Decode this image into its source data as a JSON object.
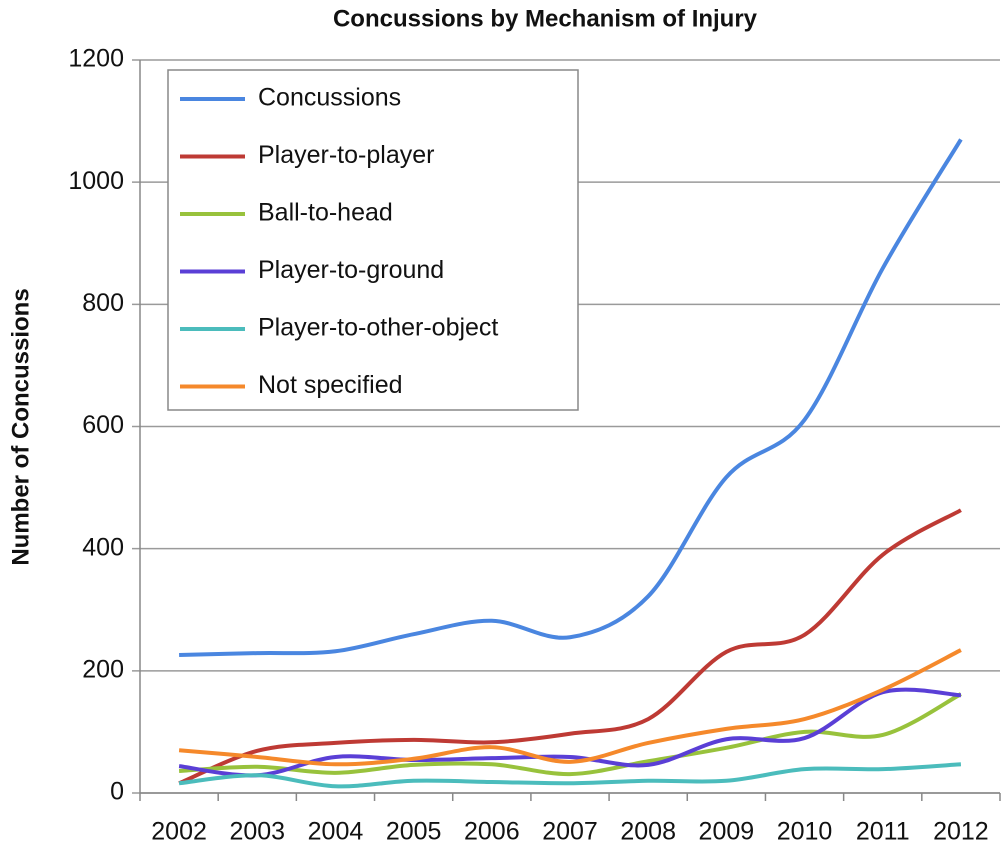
{
  "chart_data": {
    "type": "line",
    "title": "Concussions by Mechanism of Injury",
    "y_label": "Number of Concussions",
    "categories": [
      "2002",
      "2003",
      "2004",
      "2005",
      "2006",
      "2007",
      "2008",
      "2009",
      "2010",
      "2011",
      "2012"
    ],
    "series": [
      {
        "name": "Concussions",
        "color": "#4a86e0",
        "values": [
          226,
          229,
          232,
          260,
          282,
          255,
          322,
          517,
          611,
          859,
          1070
        ]
      },
      {
        "name": "Player-to-player",
        "color": "#be3a34",
        "values": [
          16,
          69,
          82,
          87,
          83,
          97,
          121,
          231,
          259,
          390,
          463
        ]
      },
      {
        "name": "Ball-to-head",
        "color": "#98c23c",
        "values": [
          36,
          43,
          33,
          46,
          47,
          31,
          52,
          74,
          100,
          95,
          162
        ]
      },
      {
        "name": "Player-to-ground",
        "color": "#5a3fd6",
        "values": [
          44,
          29,
          59,
          54,
          57,
          59,
          46,
          88,
          90,
          165,
          160
        ]
      },
      {
        "name": "Player-to-other-object",
        "color": "#4bbcbc",
        "values": [
          16,
          29,
          11,
          20,
          18,
          16,
          20,
          20,
          39,
          39,
          47
        ]
      },
      {
        "name": "Not specified",
        "color": "#f5892b",
        "values": [
          70,
          59,
          47,
          56,
          75,
          51,
          82,
          105,
          121,
          169,
          234
        ]
      }
    ],
    "ylim": [
      0,
      1200
    ],
    "yticks": [
      0,
      200,
      400,
      600,
      800,
      1000,
      1200
    ],
    "grid": true,
    "legend": "upper left"
  }
}
